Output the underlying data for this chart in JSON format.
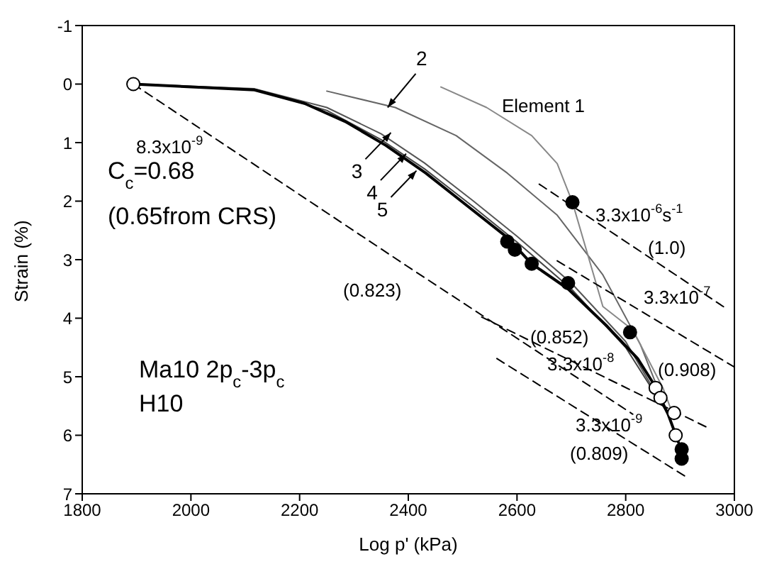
{
  "chart_data": {
    "type": "line",
    "xlabel": "Log p' (kPa)",
    "ylabel": "Strain (%)",
    "xlim": [
      1800,
      3000
    ],
    "ylim": [
      7,
      -1
    ],
    "xticks": [
      1800,
      2000,
      2200,
      2400,
      2600,
      2800,
      3000
    ],
    "yticks": [
      -1,
      0,
      1,
      2,
      3,
      4,
      5,
      6,
      7
    ],
    "marker": "none",
    "line_style": "solid",
    "series": [
      {
        "color": "#666666",
        "x": [
          2250,
          2376,
          2488,
          2582,
          2674,
          2758,
          2827,
          2878
        ],
        "values": [
          0.12,
          0.4,
          0.88,
          1.52,
          2.24,
          3.26,
          4.45,
          5.64
        ]
      },
      {
        "color": "#555555",
        "x": [
          1894,
          2117,
          2250,
          2350,
          2430,
          2520,
          2600,
          2700,
          2800,
          2878
        ],
        "values": [
          0,
          0.08,
          0.4,
          0.85,
          1.35,
          2.0,
          2.6,
          3.4,
          4.4,
          5.64
        ]
      },
      {
        "color": "#444444",
        "x": [
          1894,
          2117,
          2250,
          2350,
          2430,
          2520,
          2600,
          2700,
          2800,
          2878
        ],
        "values": [
          0,
          0.09,
          0.45,
          0.95,
          1.45,
          2.1,
          2.7,
          3.5,
          4.5,
          5.64
        ]
      },
      {
        "color": "#000000",
        "x": [
          1894,
          2117,
          2209,
          2284,
          2359,
          2432,
          2507,
          2582,
          2627,
          2694,
          2766,
          2822,
          2850,
          2878,
          2897
        ],
        "values": [
          0,
          0.1,
          0.33,
          0.64,
          1.05,
          1.52,
          2.07,
          2.62,
          3.07,
          3.5,
          4.14,
          4.69,
          5.1,
          5.64,
          6.12
        ]
      },
      {
        "color": "#888888",
        "x": [
          2460,
          2544,
          2627,
          2674,
          2702,
          2758,
          2813,
          2869,
          2889
        ],
        "values": [
          0.05,
          0.4,
          0.88,
          1.36,
          2.02,
          3.8,
          4.2,
          5.2,
          5.7
        ]
      },
      {
        "color": "#000000",
        "line_style": "dashed",
        "x": [
          1894,
          2396,
          2813
        ],
        "values": [
          0,
          3.1,
          5.64
        ]
      },
      {
        "color": "#000000",
        "line_style": "dashed",
        "x": [
          2641,
          2981
        ],
        "values": [
          1.71,
          3.81
        ]
      },
      {
        "color": "#000000",
        "line_style": "dashed",
        "x": [
          2674,
          2999
        ],
        "values": [
          3.02,
          4.83
        ]
      },
      {
        "color": "#000000",
        "line_style": "dashed",
        "x": [
          2535,
          2953
        ],
        "values": [
          3.98,
          5.88
        ]
      },
      {
        "color": "#000000",
        "line_style": "dashed",
        "x": [
          2563,
          2911
        ],
        "values": [
          4.69,
          6.71
        ]
      },
      {
        "type": "scatter",
        "marker": "circle",
        "color": "#000000",
        "x": [
          2582,
          2596,
          2627,
          2694,
          2808,
          2903,
          2903,
          2702
        ],
        "values": [
          2.69,
          2.83,
          3.07,
          3.4,
          4.24,
          6.24,
          6.4,
          2.02
        ]
      },
      {
        "type": "scatter",
        "marker": "circle",
        "color": "#ffffff",
        "x": [
          1894,
          2855,
          2864,
          2889,
          2892
        ],
        "values": [
          0,
          5.19,
          5.36,
          5.62,
          6.0
        ]
      }
    ],
    "annotations": [
      {
        "text": "2",
        "x": 2362,
        "y": 0.4
      },
      {
        "text": "3",
        "x": 2368,
        "y": 0.83
      },
      {
        "text": "4",
        "x": 2396,
        "y": 1.19
      },
      {
        "text": "5",
        "x": 2415,
        "y": 1.48
      },
      "Element 1",
      "8.3x10$^{-9}$",
      "(0.823)",
      "3.3x10$^{-6}$s$^{-1}$",
      "(1.0)",
      "3.3x10$^{-7}$",
      "(0.908)",
      "(0.852)",
      "3.3x10$^{-8}$",
      "3.3x10$^{-9}$",
      "(0.809)",
      "C$_{c}$=0.68",
      "(0.65from CRS)",
      "Ma10 2p$_{c}$-3p$_{c}$",
      "H10"
    ]
  }
}
